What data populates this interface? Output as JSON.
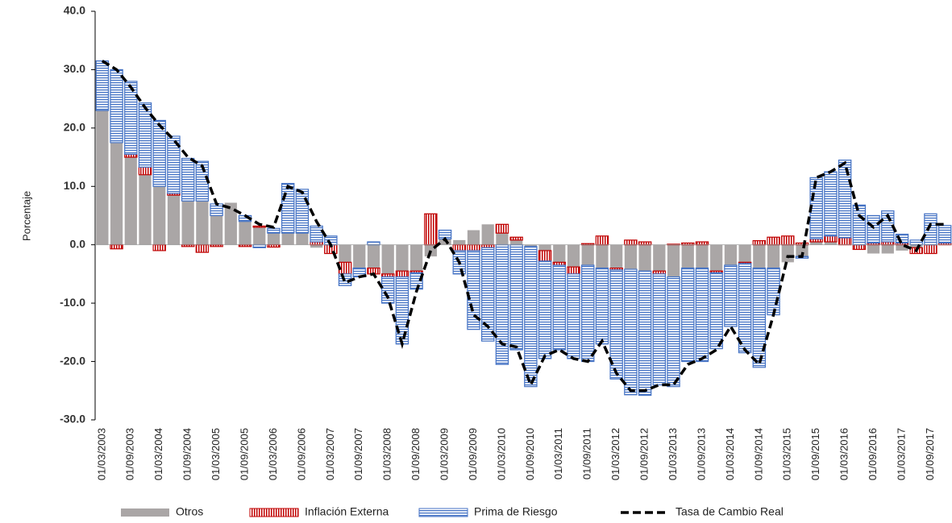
{
  "chart_data": {
    "type": "stacked_bar_line",
    "y_axis_label": "Porcentaje",
    "categories": [
      "01/03/2003",
      null,
      "01/09/2003",
      null,
      "01/03/2004",
      null,
      "01/09/2004",
      null,
      "01/03/2005",
      null,
      "01/09/2005",
      null,
      "01/03/2006",
      null,
      "01/09/2006",
      null,
      "01/03/2007",
      null,
      "01/09/2007",
      null,
      "01/03/2008",
      null,
      "01/09/2008",
      null,
      "01/03/2009",
      null,
      "01/09/2009",
      null,
      "01/03/2010",
      null,
      "01/09/2010",
      null,
      "01/03/2011",
      null,
      "01/09/2011",
      null,
      "01/03/2012",
      null,
      "01/09/2012",
      null,
      "01/03/2013",
      null,
      "01/09/2013",
      null,
      "01/03/2014",
      null,
      "01/09/2014",
      null,
      "01/03/2015",
      null,
      "01/09/2015",
      null,
      "01/03/2016",
      null,
      "01/09/2016",
      null,
      "01/03/2017",
      null,
      "01/09/2017",
      null
    ],
    "series": [
      {
        "name": "Otros",
        "color": "#aaa6a6",
        "kind": "bar",
        "values": [
          23,
          17.5,
          15,
          12,
          10,
          8.5,
          7.5,
          7.5,
          5,
          7.2,
          4,
          3,
          2,
          2,
          2,
          -0.5,
          0,
          -3,
          -4,
          -4,
          -5,
          -4.5,
          -4.5,
          -2,
          1,
          0.8,
          2.5,
          3.5,
          2,
          0.8,
          -0.3,
          -1,
          -3,
          -3.8,
          -3.5,
          -4,
          -4,
          -4.2,
          -4.5,
          -4.5,
          -5.5,
          -4,
          -4,
          -4.5,
          -3.5,
          -3,
          -4,
          -4,
          -3,
          -2,
          0.5,
          0.5,
          0,
          0,
          -1.5,
          -1.5,
          -1,
          -0.5,
          0,
          0
        ]
      },
      {
        "name": "Inflación Externa",
        "color": "#c00000",
        "kind": "bar",
        "values": [
          0,
          -0.7,
          0.5,
          1.3,
          -1,
          0.3,
          -0.3,
          -1.3,
          -0.3,
          0,
          -0.3,
          0.2,
          -0.4,
          0,
          0,
          0.5,
          -1.5,
          -2,
          0,
          -1,
          -0.5,
          -1,
          -0.3,
          5.3,
          0,
          -1,
          -1,
          -0.5,
          1.5,
          0.5,
          0,
          -1.8,
          -0.5,
          -1.2,
          0.2,
          1.5,
          -0.3,
          0.8,
          0.5,
          -0.5,
          0.1,
          0.3,
          0.5,
          -0.3,
          0,
          -0.2,
          0.7,
          1.3,
          1.5,
          0.3,
          0.5,
          1,
          1.2,
          -0.8,
          0.3,
          0.5,
          0.3,
          -1,
          -1.5,
          0.3
        ]
      },
      {
        "name": "Prima de Riesgo",
        "color": "#4472c4",
        "kind": "bar",
        "values": [
          8.5,
          12.5,
          12.5,
          11,
          11.3,
          9.8,
          7.3,
          6.8,
          2,
          0,
          1,
          -0.5,
          0.8,
          8.5,
          7.5,
          2.7,
          1.5,
          -2,
          -1.5,
          0.5,
          -4.5,
          -11.5,
          -2.8,
          0,
          1.5,
          -4,
          -13.5,
          -16,
          -20.5,
          -18,
          -24,
          -16.7,
          -14.5,
          -14.5,
          -16.5,
          -13,
          -18.7,
          -21.5,
          -21.3,
          -19,
          -18.8,
          -16,
          -16,
          -13,
          -10.5,
          -15.3,
          -17,
          -8,
          0,
          -0.3,
          10.5,
          11,
          13.3,
          6.8,
          4.7,
          5.3,
          1.5,
          0.8,
          5.3,
          3
        ]
      },
      {
        "name": "Tasa de Cambio Real",
        "color": "#000000",
        "kind": "line",
        "values": [
          31.5,
          30,
          27,
          23.5,
          20.5,
          18,
          15,
          13.5,
          7,
          6.3,
          5,
          3.5,
          3,
          10,
          9,
          4,
          0,
          -6.5,
          -5.5,
          -5,
          -9,
          -17,
          -8,
          -1,
          1,
          -3,
          -12,
          -14,
          -17,
          -17.5,
          -24,
          -19,
          -18,
          -19.5,
          -20,
          -16.5,
          -22,
          -25,
          -25,
          -24,
          -24,
          -20.5,
          -19.5,
          -18,
          -14,
          -18,
          -20.5,
          -12,
          -2,
          -2,
          11.5,
          12.5,
          14,
          5,
          3,
          5,
          0,
          -1,
          3.5,
          3.5
        ]
      }
    ],
    "ylim": [
      -30,
      40
    ],
    "yticks": [
      {
        "value": -30,
        "label": "-30.0"
      },
      {
        "value": -20,
        "label": "-20.0"
      },
      {
        "value": -10,
        "label": "-10.0"
      },
      {
        "value": 0,
        "label": "0.0"
      },
      {
        "value": 10,
        "label": "10.0"
      },
      {
        "value": 20,
        "label": "20.0"
      },
      {
        "value": 30,
        "label": "30.0"
      },
      {
        "value": 40,
        "label": "40.0"
      }
    ],
    "legend": "bottom"
  }
}
